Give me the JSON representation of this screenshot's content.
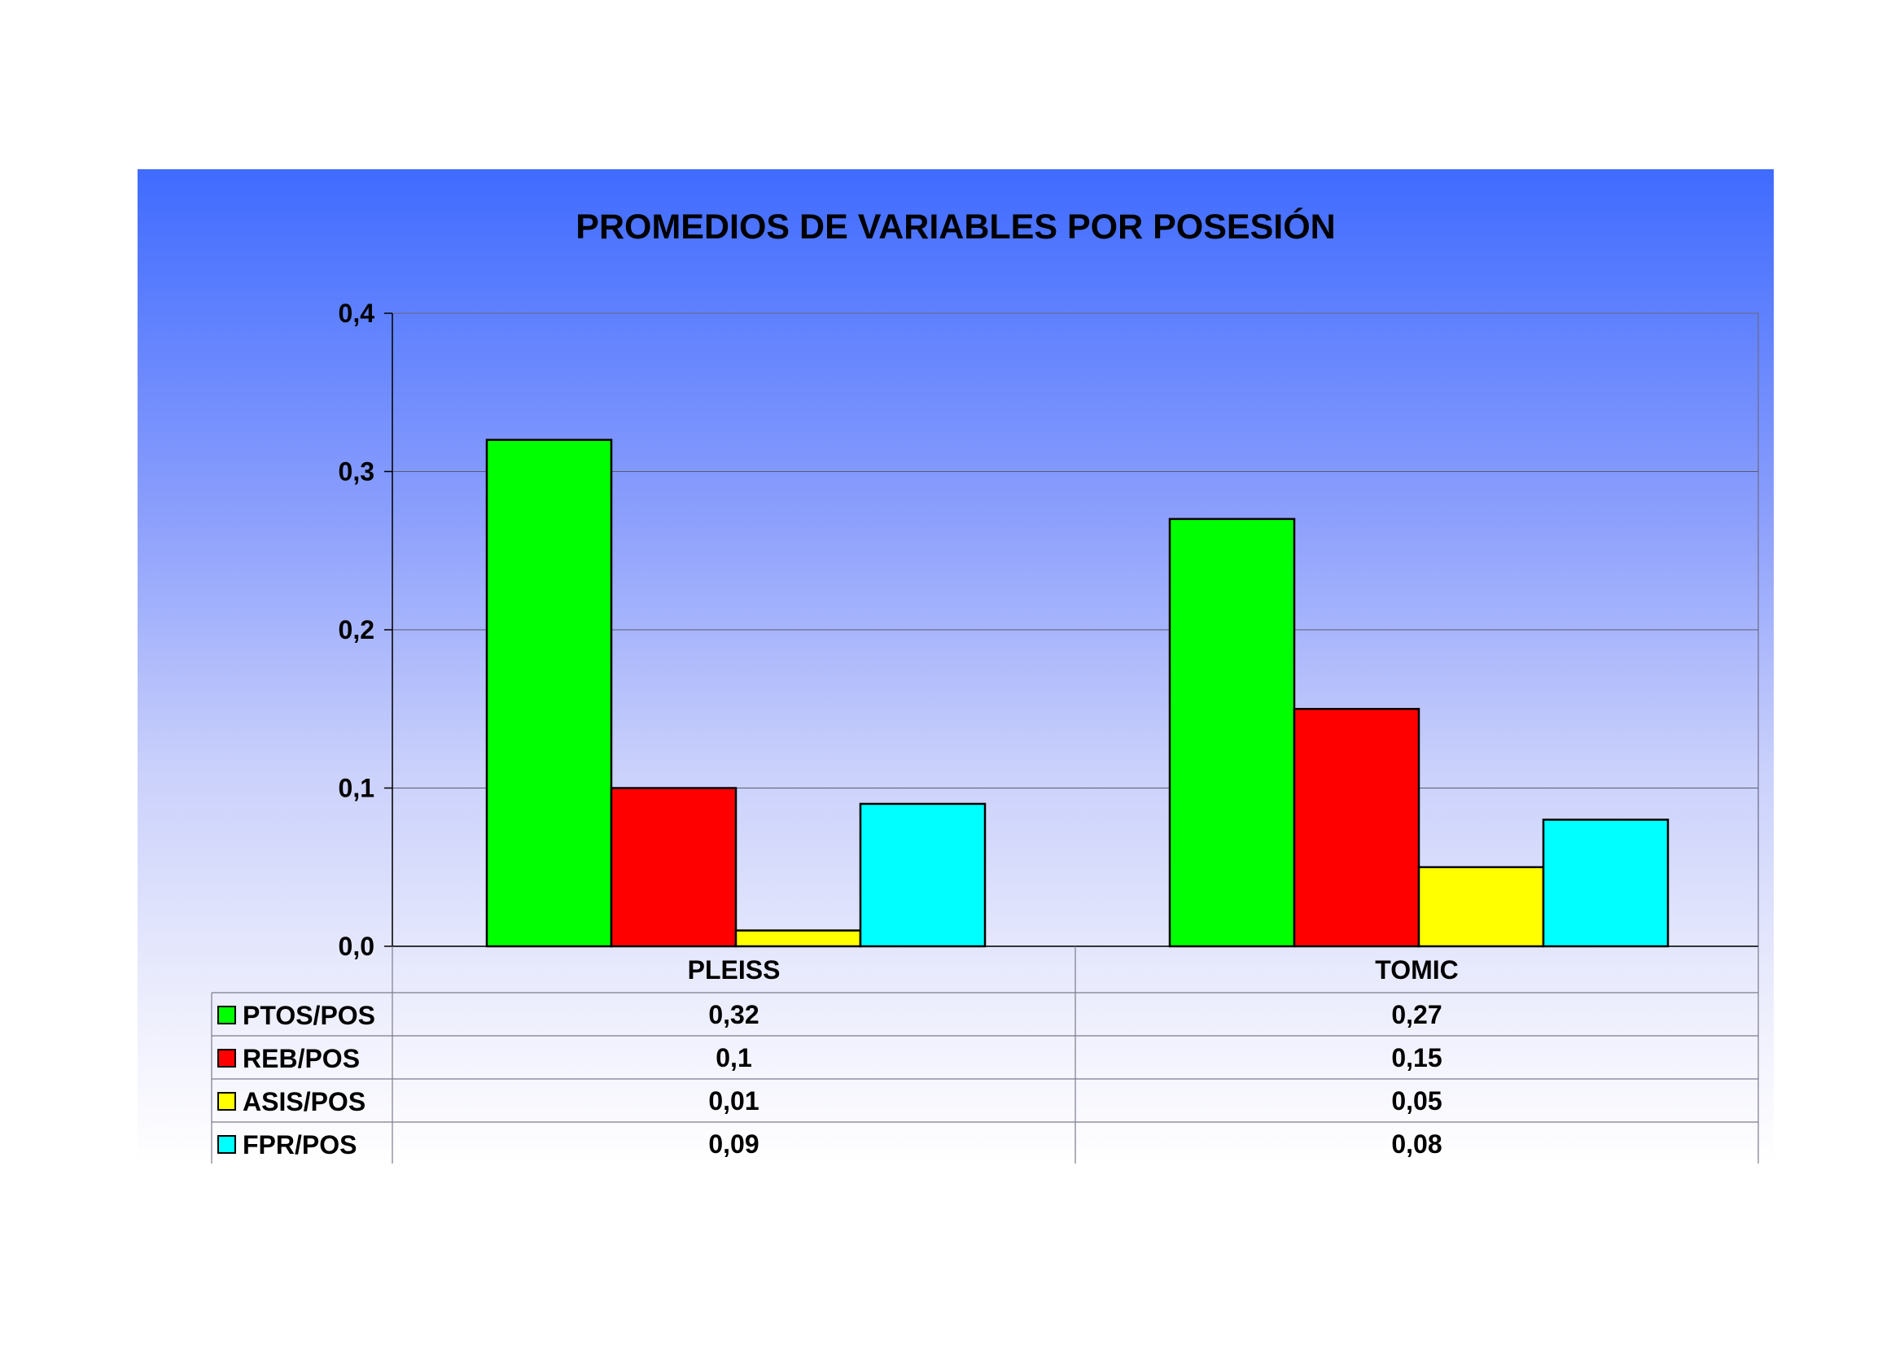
{
  "chart_data": {
    "type": "bar",
    "title": "PROMEDIOS DE VARIABLES POR POSESIÓN",
    "categories": [
      "PLEISS",
      "TOMIC"
    ],
    "series": [
      {
        "name": "PTOS/POS",
        "color": "#00ff00",
        "values": [
          0.32,
          0.27
        ],
        "labels": [
          "0,32",
          "0,27"
        ]
      },
      {
        "name": "REB/POS",
        "color": "#ff0000",
        "values": [
          0.1,
          0.15
        ],
        "labels": [
          "0,1",
          "0,15"
        ]
      },
      {
        "name": "ASIS/POS",
        "color": "#ffff00",
        "values": [
          0.01,
          0.05
        ],
        "labels": [
          "0,01",
          "0,05"
        ]
      },
      {
        "name": "FPR/POS",
        "color": "#00ffff",
        "values": [
          0.09,
          0.08
        ],
        "labels": [
          "0,09",
          "0,08"
        ]
      }
    ],
    "ylim": [
      0,
      0.4
    ],
    "yticks": [
      0,
      0.1,
      0.2,
      0.3,
      0.4
    ],
    "ytick_labels": [
      "0,0",
      "0,1",
      "0,2",
      "0,3",
      "0,4"
    ],
    "grid": true,
    "legend": "data-table"
  }
}
